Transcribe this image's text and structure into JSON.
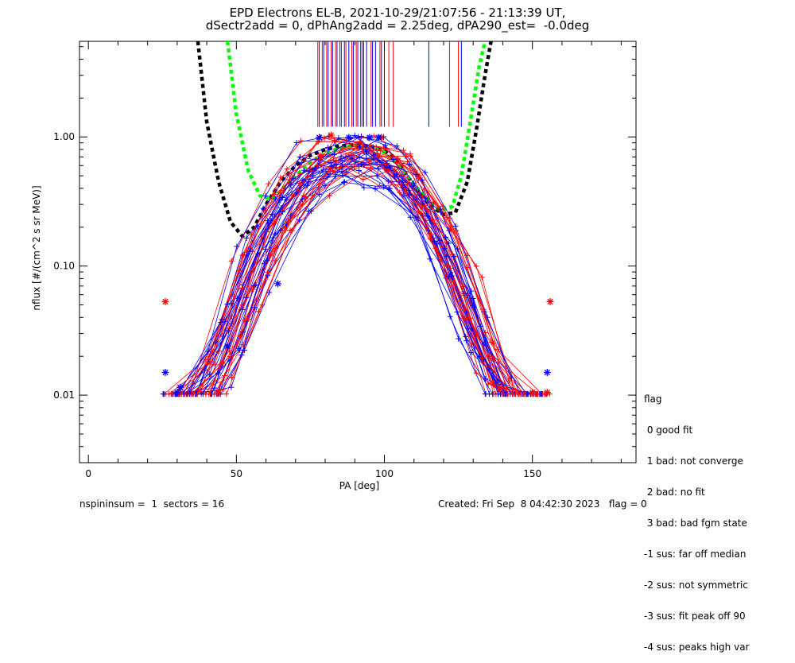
{
  "title_line1": "EPD Electrons EL-B, 2021-10-29/21:07:56 - 21:13:39 UT,",
  "title_line2": "dSectr2add = 0, dPhAng2add = 2.25deg, dPA290_est=  -0.0deg",
  "footer_left": "nspininsum =  1  sectors = 16",
  "footer_right": "Created: Fri Sep  8 04:42:30 2023   flag = 0",
  "legend": {
    "title": "flag",
    "items": [
      " 0 good fit",
      " 1 bad: not converge",
      " 2 bad: no fit",
      " 3 bad: bad fgm state",
      "-1 sus: far off median",
      "-2 sus: not symmetric",
      "-3 sus: fit peak off 90",
      "-4 sus: peaks high var"
    ]
  },
  "colors": {
    "red": "#ff0000",
    "blue": "#0000ff",
    "green": "#00ff00",
    "black": "#000000"
  },
  "chart_data": {
    "type": "line",
    "xlabel": "PA [deg]",
    "ylabel": "nflux [#/(cm^2 s sr MeV)]",
    "xlim": [
      -3,
      185
    ],
    "ylim": [
      0.003,
      5.5
    ],
    "yscale": "log",
    "xticks": [
      0,
      50,
      100,
      150
    ],
    "xtick_labels": [
      "0",
      "50",
      "100",
      "150"
    ],
    "yticks": [
      0.01,
      0.1,
      1.0
    ],
    "ytick_labels": [
      "0.01",
      "0.10",
      "1.00"
    ],
    "fit_curves": [
      {
        "color": "black",
        "style": "dashed",
        "x": [
          37,
          40,
          44,
          48,
          52,
          56,
          60,
          65,
          70,
          75,
          80,
          85,
          90,
          95,
          100,
          105,
          110,
          115,
          120,
          124,
          128,
          131,
          134,
          136
        ],
        "y": [
          5.5,
          1.3,
          0.45,
          0.22,
          0.17,
          0.2,
          0.3,
          0.45,
          0.6,
          0.72,
          0.8,
          0.85,
          0.87,
          0.85,
          0.78,
          0.62,
          0.42,
          0.3,
          0.25,
          0.26,
          0.45,
          1.1,
          3.0,
          5.5
        ]
      },
      {
        "color": "green",
        "style": "dashed",
        "x": [
          47,
          50,
          54,
          58,
          62,
          66,
          70,
          75,
          80,
          85,
          90,
          95,
          100,
          105,
          110,
          115,
          119,
          123,
          126,
          129,
          132,
          134
        ],
        "y": [
          5.5,
          1.5,
          0.55,
          0.35,
          0.33,
          0.4,
          0.5,
          0.63,
          0.75,
          0.82,
          0.86,
          0.84,
          0.76,
          0.6,
          0.43,
          0.32,
          0.27,
          0.29,
          0.5,
          1.3,
          3.5,
          5.5
        ]
      }
    ],
    "markers": {
      "red": [
        [
          26,
          0.053
        ],
        [
          156,
          0.053
        ],
        [
          82,
          1.03
        ],
        [
          99,
          0.99
        ],
        [
          44,
          0.0105
        ],
        [
          139,
          0.0112
        ],
        [
          150,
          0.0105
        ],
        [
          155,
          0.0105
        ]
      ],
      "blue": [
        [
          26,
          0.015
        ],
        [
          30,
          0.0105
        ],
        [
          31,
          0.0115
        ],
        [
          155,
          0.015
        ],
        [
          78,
          0.99
        ],
        [
          88,
          0.99
        ],
        [
          95,
          0.99
        ],
        [
          98,
          0.99
        ],
        [
          64,
          0.073
        ],
        [
          47,
          0.024
        ]
      ]
    },
    "spike_x": {
      "red": [
        77.5,
        79,
        80.5,
        82,
        83.5,
        85.5,
        87,
        89,
        90.5,
        92.5,
        95.5,
        98.5,
        101.5,
        103,
        122,
        125
      ],
      "blue": [
        78,
        79.5,
        81,
        82.5,
        84,
        85,
        86.5,
        88,
        89.5,
        91,
        92,
        93,
        94,
        96,
        97,
        99,
        100,
        115,
        126
      ]
    },
    "spike_range": [
      1.2,
      5.5
    ]
  }
}
